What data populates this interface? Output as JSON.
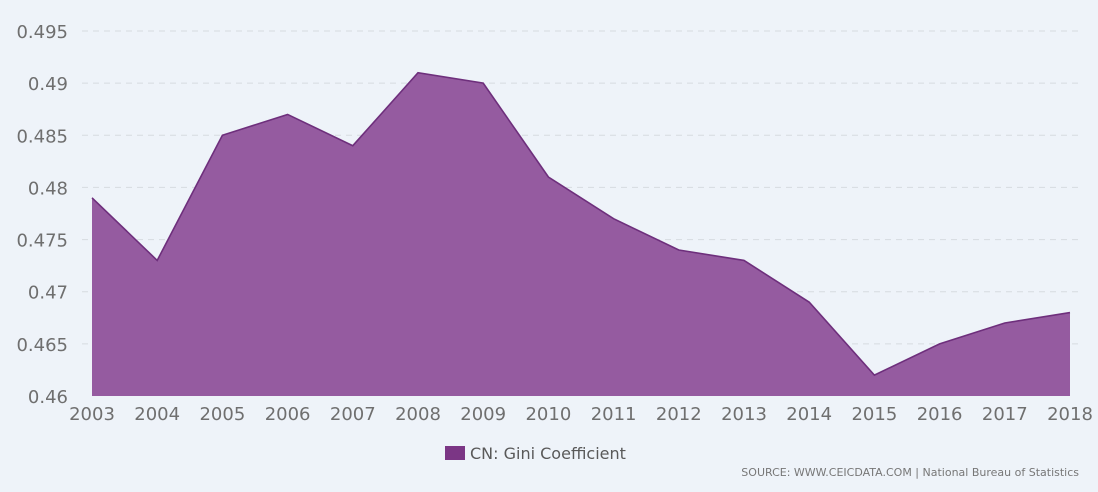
{
  "chart_data": {
    "type": "area",
    "x": [
      "2003",
      "2004",
      "2005",
      "2006",
      "2007",
      "2008",
      "2009",
      "2010",
      "2011",
      "2012",
      "2013",
      "2014",
      "2015",
      "2016",
      "2017",
      "2018"
    ],
    "series": [
      {
        "name": "CN: Gini Coefficient",
        "values": [
          0.479,
          0.473,
          0.485,
          0.487,
          0.484,
          0.491,
          0.49,
          0.481,
          0.477,
          0.474,
          0.473,
          0.469,
          0.462,
          0.465,
          0.467,
          0.468
        ]
      }
    ],
    "y_ticks": [
      "0.46",
      "0.465",
      "0.47",
      "0.475",
      "0.48",
      "0.485",
      "0.49",
      "0.495"
    ],
    "ylim": [
      0.46,
      0.495
    ],
    "grid": true,
    "legend_position": "bottom-center",
    "colors": {
      "area_fill": "#955ba0",
      "area_line": "#6e2f7c",
      "legend_swatch": "#7b3685",
      "background": "#eef3f9"
    },
    "source": "SOURCE: WWW.CEICDATA.COM | National Bureau of Statistics"
  }
}
